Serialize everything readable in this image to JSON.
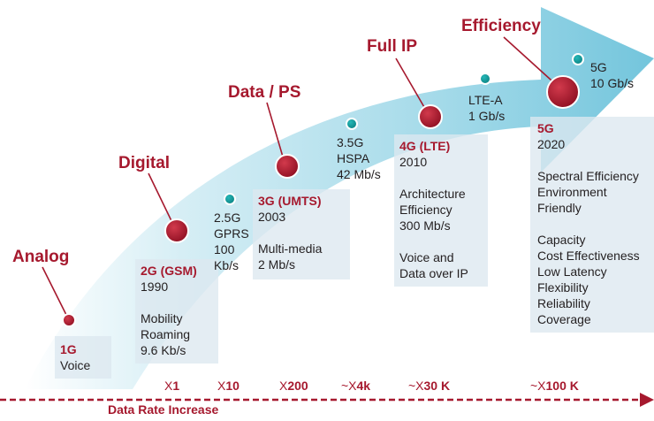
{
  "colors": {
    "accent": "#a6192e",
    "arrow_light": "#d6eef5",
    "arrow_dark": "#73c5dc",
    "teal_dot": "#0e9a9a",
    "box_bg": "#dce8f0"
  },
  "eras": [
    "Analog",
    "Digital",
    "Data / PS",
    "Full IP",
    "Efficiency"
  ],
  "generations": {
    "g1": {
      "title": "1G",
      "lines": [
        "Voice"
      ]
    },
    "g2": {
      "title": "2G (GSM)",
      "year": "1990",
      "lines": [
        "Mobility",
        "Roaming",
        "9.6 Kb/s"
      ]
    },
    "g3": {
      "title": "3G (UMTS)",
      "year": "2003",
      "lines": [
        "Multi-media",
        "2 Mb/s"
      ]
    },
    "g4": {
      "title": "4G (LTE)",
      "year": "2010",
      "lines": [
        "Architecture",
        "Efficiency",
        "300 Mb/s",
        "Voice and",
        "Data over IP"
      ]
    },
    "g5": {
      "title": "5G",
      "year": "2020",
      "lines": [
        "Spectral Efficiency",
        "Environment",
        "Friendly",
        "Capacity",
        "Cost Effectiveness",
        "Low Latency",
        "Flexibility",
        "Reliability",
        "Coverage"
      ]
    }
  },
  "intermediates": {
    "g25": [
      "2.5G",
      "GPRS",
      "100",
      "Kb/s"
    ],
    "g35": [
      "3.5G",
      "HSPA",
      "42 Mb/s"
    ],
    "lte_a": [
      "LTE-A",
      "1 Gb/s"
    ],
    "g5_peak": [
      "5G",
      "10 Gb/s"
    ]
  },
  "multipliers": [
    {
      "prefix": "X",
      "value": "1"
    },
    {
      "prefix": "X",
      "value": "10"
    },
    {
      "prefix": "X",
      "value": "200"
    },
    {
      "prefix": "~X",
      "value": "4k"
    },
    {
      "prefix": "~X",
      "value": "30 K"
    },
    {
      "prefix": "~X",
      "value": "100 K"
    }
  ],
  "axis_label": "Data Rate Increase"
}
